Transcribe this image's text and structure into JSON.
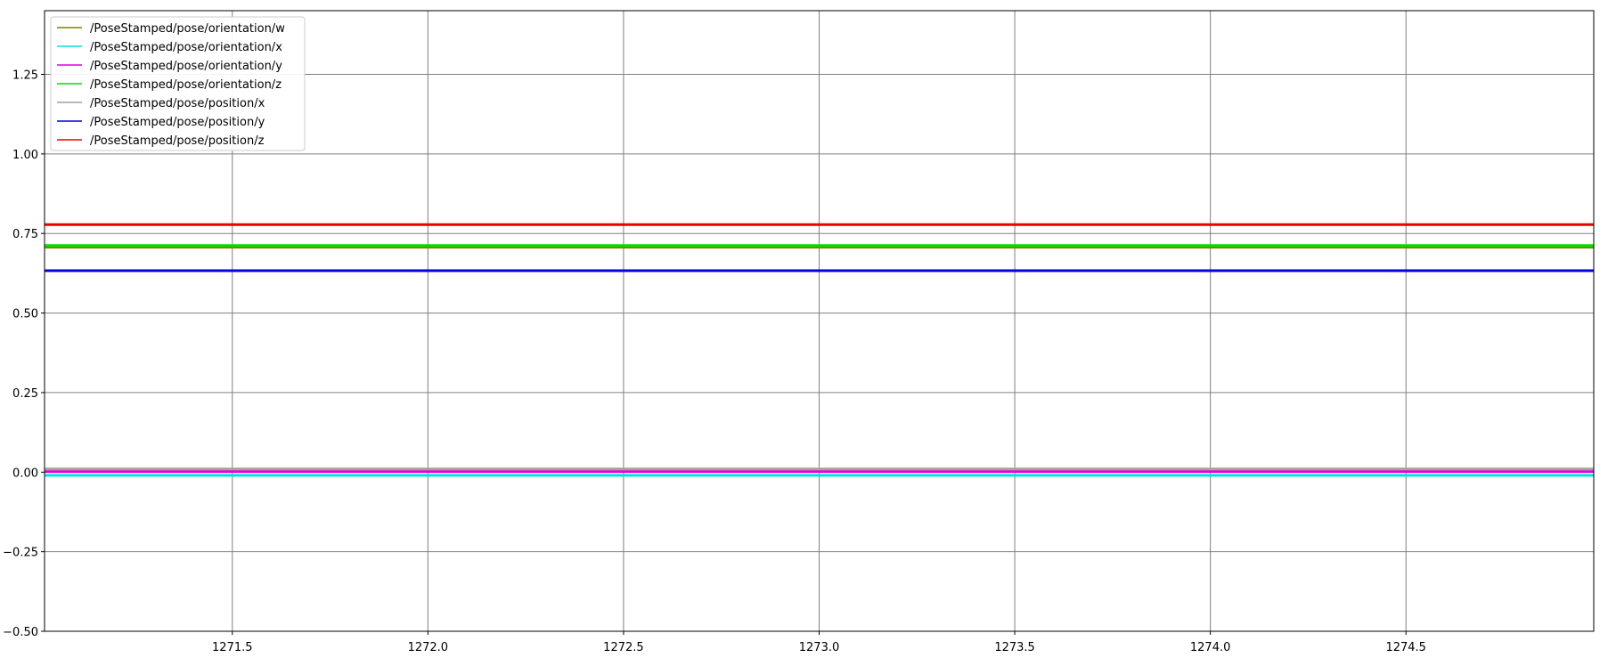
{
  "chart_data": {
    "type": "line",
    "title": "",
    "xlabel": "",
    "ylabel": "",
    "xlim": [
      1271.02,
      1274.98
    ],
    "ylim": [
      -0.5,
      1.45
    ],
    "grid": true,
    "legend_position": "top-left",
    "x_ticks": [
      1271.5,
      1272.0,
      1272.5,
      1273.0,
      1273.5,
      1274.0,
      1274.5
    ],
    "x_tick_labels": [
      "1271.5",
      "1272.0",
      "1272.5",
      "1273.0",
      "1273.5",
      "1274.0",
      "1274.5"
    ],
    "y_ticks": [
      -0.5,
      -0.25,
      0.0,
      0.25,
      0.5,
      0.75,
      1.0,
      1.25
    ],
    "y_tick_labels": [
      "−0.50",
      "−0.25",
      "0.00",
      "0.25",
      "0.50",
      "0.75",
      "1.00",
      "1.25"
    ],
    "x": [
      1271.02,
      1274.98
    ],
    "series": [
      {
        "name": "/PoseStamped/pose/orientation/w",
        "color": "#808000",
        "values": [
          0.707,
          0.707
        ]
      },
      {
        "name": "/PoseStamped/pose/orientation/x",
        "color": "#00e0e0",
        "values": [
          -0.01,
          -0.01
        ]
      },
      {
        "name": "/PoseStamped/pose/orientation/y",
        "color": "#e000e0",
        "values": [
          0.002,
          0.002
        ]
      },
      {
        "name": "/PoseStamped/pose/orientation/z",
        "color": "#00e000",
        "values": [
          0.712,
          0.712
        ]
      },
      {
        "name": "/PoseStamped/pose/position/x",
        "color": "#a0a0a0",
        "values": [
          0.01,
          0.01
        ]
      },
      {
        "name": "/PoseStamped/pose/position/y",
        "color": "#0000dd",
        "values": [
          0.633,
          0.633
        ]
      },
      {
        "name": "/PoseStamped/pose/position/z",
        "color": "#ee0000",
        "values": [
          0.778,
          0.778
        ]
      }
    ]
  }
}
